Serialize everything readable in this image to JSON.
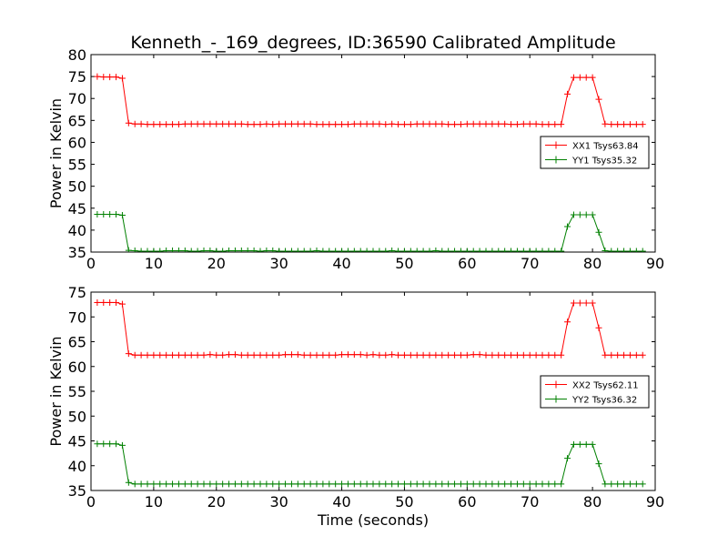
{
  "chart_data": {
    "type": "line",
    "title": "Kenneth_-_169_degrees, ID:36590 Calibrated Amplitude",
    "xlabel": "Time (seconds)",
    "ylabel": "Power in Kelvin",
    "grid": false,
    "colors": {
      "xx": "#ff0000",
      "yy": "#008000"
    },
    "panels": [
      {
        "xlim": [
          0,
          90
        ],
        "ylim": [
          35,
          80
        ],
        "xticks": [
          "0",
          "10",
          "20",
          "30",
          "40",
          "50",
          "60",
          "70",
          "80",
          "90"
        ],
        "yticks": [
          "35",
          "40",
          "45",
          "50",
          "55",
          "60",
          "65",
          "70",
          "75",
          "80"
        ],
        "legend_position": "center-right",
        "series": [
          {
            "name": "XX1 Tsys63.84",
            "color": "#ff0000",
            "x": [
              1,
              2,
              3,
              4,
              5,
              6,
              7,
              8,
              9,
              10,
              11,
              12,
              13,
              14,
              15,
              16,
              17,
              18,
              19,
              20,
              21,
              22,
              23,
              24,
              25,
              26,
              27,
              28,
              29,
              30,
              31,
              32,
              33,
              34,
              35,
              36,
              37,
              38,
              39,
              40,
              41,
              42,
              43,
              44,
              45,
              46,
              47,
              48,
              49,
              50,
              51,
              52,
              53,
              54,
              55,
              56,
              57,
              58,
              59,
              60,
              61,
              62,
              63,
              64,
              65,
              66,
              67,
              68,
              69,
              70,
              71,
              72,
              73,
              74,
              75,
              76,
              77,
              78,
              79,
              80,
              81,
              82,
              83,
              84,
              85,
              86,
              87,
              88
            ],
            "y": [
              75,
              74.9,
              74.9,
              74.9,
              74.6,
              64.4,
              64.2,
              64.2,
              64.1,
              64.1,
              64.1,
              64.1,
              64.1,
              64.1,
              64.2,
              64.2,
              64.2,
              64.2,
              64.2,
              64.2,
              64.2,
              64.2,
              64.2,
              64.2,
              64.1,
              64.1,
              64.1,
              64.2,
              64.1,
              64.2,
              64.2,
              64.2,
              64.2,
              64.2,
              64.2,
              64.1,
              64.1,
              64.1,
              64.1,
              64.1,
              64.1,
              64.2,
              64.2,
              64.2,
              64.2,
              64.2,
              64.1,
              64.2,
              64.1,
              64.1,
              64.1,
              64.2,
              64.2,
              64.2,
              64.2,
              64.2,
              64.1,
              64.1,
              64.1,
              64.2,
              64.2,
              64.2,
              64.2,
              64.2,
              64.2,
              64.2,
              64.1,
              64.1,
              64.2,
              64.2,
              64.2,
              64.1,
              64.1,
              64.1,
              64.1,
              71,
              74.8,
              74.8,
              74.8,
              74.8,
              69.8,
              64.2,
              64.1,
              64.1,
              64.1,
              64.1,
              64.1,
              64.1
            ]
          },
          {
            "name": "YY1 Tsys35.32",
            "color": "#008000",
            "x": [
              1,
              2,
              3,
              4,
              5,
              6,
              7,
              8,
              9,
              10,
              11,
              12,
              13,
              14,
              15,
              16,
              17,
              18,
              19,
              20,
              21,
              22,
              23,
              24,
              25,
              26,
              27,
              28,
              29,
              30,
              31,
              32,
              33,
              34,
              35,
              36,
              37,
              38,
              39,
              40,
              41,
              42,
              43,
              44,
              45,
              46,
              47,
              48,
              49,
              50,
              51,
              52,
              53,
              54,
              55,
              56,
              57,
              58,
              59,
              60,
              61,
              62,
              63,
              64,
              65,
              66,
              67,
              68,
              69,
              70,
              71,
              72,
              73,
              74,
              75,
              76,
              77,
              78,
              79,
              80,
              81,
              82,
              83,
              84,
              85,
              86,
              87,
              88
            ],
            "y": [
              43.6,
              43.6,
              43.6,
              43.6,
              43.4,
              35.4,
              35.3,
              35.2,
              35.2,
              35.2,
              35.2,
              35.3,
              35.3,
              35.3,
              35.3,
              35.2,
              35.2,
              35.3,
              35.3,
              35.2,
              35.2,
              35.3,
              35.3,
              35.3,
              35.3,
              35.3,
              35.2,
              35.3,
              35.3,
              35.2,
              35.2,
              35.2,
              35.2,
              35.2,
              35.2,
              35.3,
              35.2,
              35.2,
              35.2,
              35.2,
              35.2,
              35.2,
              35.2,
              35.2,
              35.2,
              35.2,
              35.2,
              35.3,
              35.2,
              35.2,
              35.2,
              35.2,
              35.2,
              35.2,
              35.3,
              35.2,
              35.2,
              35.2,
              35.2,
              35.2,
              35.2,
              35.2,
              35.2,
              35.2,
              35.2,
              35.2,
              35.2,
              35.2,
              35.2,
              35.2,
              35.2,
              35.2,
              35.2,
              35.2,
              35.2,
              40.8,
              43.5,
              43.5,
              43.5,
              43.5,
              39.5,
              35.3,
              35.2,
              35.2,
              35.2,
              35.2,
              35.2,
              35.2
            ]
          }
        ]
      },
      {
        "xlim": [
          0,
          90
        ],
        "ylim": [
          35,
          75
        ],
        "xticks": [
          "0",
          "10",
          "20",
          "30",
          "40",
          "50",
          "60",
          "70",
          "80",
          "90"
        ],
        "yticks": [
          "35",
          "40",
          "45",
          "50",
          "55",
          "60",
          "65",
          "70",
          "75"
        ],
        "legend_position": "center-right",
        "series": [
          {
            "name": "XX2 Tsys62.11",
            "color": "#ff0000",
            "x": [
              1,
              2,
              3,
              4,
              5,
              6,
              7,
              8,
              9,
              10,
              11,
              12,
              13,
              14,
              15,
              16,
              17,
              18,
              19,
              20,
              21,
              22,
              23,
              24,
              25,
              26,
              27,
              28,
              29,
              30,
              31,
              32,
              33,
              34,
              35,
              36,
              37,
              38,
              39,
              40,
              41,
              42,
              43,
              44,
              45,
              46,
              47,
              48,
              49,
              50,
              51,
              52,
              53,
              54,
              55,
              56,
              57,
              58,
              59,
              60,
              61,
              62,
              63,
              64,
              65,
              66,
              67,
              68,
              69,
              70,
              71,
              72,
              73,
              74,
              75,
              76,
              77,
              78,
              79,
              80,
              81,
              82,
              83,
              84,
              85,
              86,
              87,
              88
            ],
            "y": [
              72.9,
              72.9,
              72.9,
              72.9,
              72.6,
              62.6,
              62.3,
              62.3,
              62.3,
              62.3,
              62.3,
              62.3,
              62.3,
              62.3,
              62.3,
              62.3,
              62.3,
              62.3,
              62.4,
              62.3,
              62.3,
              62.4,
              62.4,
              62.3,
              62.3,
              62.3,
              62.3,
              62.3,
              62.3,
              62.3,
              62.4,
              62.4,
              62.4,
              62.3,
              62.3,
              62.3,
              62.3,
              62.3,
              62.3,
              62.4,
              62.4,
              62.4,
              62.4,
              62.3,
              62.4,
              62.3,
              62.3,
              62.4,
              62.3,
              62.3,
              62.3,
              62.3,
              62.3,
              62.3,
              62.3,
              62.3,
              62.3,
              62.3,
              62.3,
              62.3,
              62.4,
              62.4,
              62.3,
              62.3,
              62.3,
              62.3,
              62.3,
              62.3,
              62.3,
              62.3,
              62.3,
              62.3,
              62.3,
              62.3,
              62.3,
              69,
              72.8,
              72.8,
              72.8,
              72.8,
              67.8,
              62.3,
              62.3,
              62.3,
              62.3,
              62.3,
              62.3,
              62.3
            ]
          },
          {
            "name": "YY2 Tsys36.32",
            "color": "#008000",
            "x": [
              1,
              2,
              3,
              4,
              5,
              6,
              7,
              8,
              9,
              10,
              11,
              12,
              13,
              14,
              15,
              16,
              17,
              18,
              19,
              20,
              21,
              22,
              23,
              24,
              25,
              26,
              27,
              28,
              29,
              30,
              31,
              32,
              33,
              34,
              35,
              36,
              37,
              38,
              39,
              40,
              41,
              42,
              43,
              44,
              45,
              46,
              47,
              48,
              49,
              50,
              51,
              52,
              53,
              54,
              55,
              56,
              57,
              58,
              59,
              60,
              61,
              62,
              63,
              64,
              65,
              66,
              67,
              68,
              69,
              70,
              71,
              72,
              73,
              74,
              75,
              76,
              77,
              78,
              79,
              80,
              81,
              82,
              83,
              84,
              85,
              86,
              87,
              88
            ],
            "y": [
              44.4,
              44.4,
              44.4,
              44.4,
              44.1,
              36.6,
              36.3,
              36.3,
              36.3,
              36.3,
              36.3,
              36.3,
              36.3,
              36.3,
              36.3,
              36.3,
              36.3,
              36.3,
              36.3,
              36.3,
              36.3,
              36.3,
              36.3,
              36.3,
              36.3,
              36.3,
              36.3,
              36.3,
              36.3,
              36.3,
              36.3,
              36.3,
              36.3,
              36.3,
              36.3,
              36.3,
              36.3,
              36.3,
              36.3,
              36.3,
              36.3,
              36.3,
              36.3,
              36.3,
              36.3,
              36.3,
              36.3,
              36.3,
              36.3,
              36.3,
              36.3,
              36.3,
              36.3,
              36.3,
              36.3,
              36.3,
              36.3,
              36.3,
              36.3,
              36.3,
              36.3,
              36.3,
              36.3,
              36.3,
              36.3,
              36.3,
              36.3,
              36.3,
              36.3,
              36.3,
              36.3,
              36.3,
              36.3,
              36.3,
              36.3,
              41.5,
              44.3,
              44.3,
              44.3,
              44.3,
              40.4,
              36.3,
              36.3,
              36.3,
              36.3,
              36.3,
              36.3,
              36.3
            ]
          }
        ]
      }
    ]
  }
}
